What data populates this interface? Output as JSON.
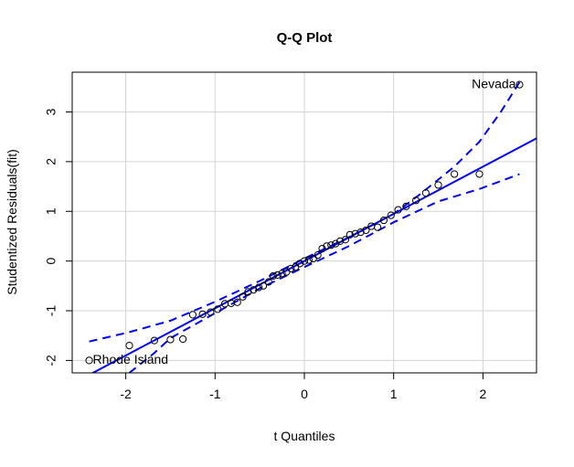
{
  "chart_data": {
    "type": "scatter",
    "title": "Q-Q Plot",
    "xlabel": "t Quantiles",
    "ylabel": "Studentized Residuals(fit)",
    "xlim": [
      -2.6,
      2.6
    ],
    "ylim": [
      -2.25,
      3.8
    ],
    "x_ticks": [
      -2,
      -1,
      0,
      1,
      2
    ],
    "x_tick_labels": [
      "-2",
      "-1",
      "0",
      "1",
      "2"
    ],
    "y_ticks": [
      -2,
      -1,
      0,
      1,
      2,
      3
    ],
    "y_tick_labels": [
      "-2",
      "-1",
      "0",
      "1",
      "2",
      "3"
    ],
    "grid": true,
    "colors": {
      "points": "#000000",
      "line": "#0000ff",
      "grid": "#d3d3d3",
      "axes": "#000000"
    },
    "points": [
      {
        "x": -2.41,
        "y": -2.0
      },
      {
        "x": -1.96,
        "y": -1.7
      },
      {
        "x": -1.68,
        "y": -1.6
      },
      {
        "x": -1.5,
        "y": -1.58
      },
      {
        "x": -1.36,
        "y": -1.57
      },
      {
        "x": -1.25,
        "y": -1.08
      },
      {
        "x": -1.14,
        "y": -1.07
      },
      {
        "x": -1.05,
        "y": -1.03
      },
      {
        "x": -0.97,
        "y": -0.97
      },
      {
        "x": -0.89,
        "y": -0.86
      },
      {
        "x": -0.82,
        "y": -0.85
      },
      {
        "x": -0.75,
        "y": -0.83
      },
      {
        "x": -0.69,
        "y": -0.72
      },
      {
        "x": -0.63,
        "y": -0.62
      },
      {
        "x": -0.57,
        "y": -0.58
      },
      {
        "x": -0.51,
        "y": -0.53
      },
      {
        "x": -0.46,
        "y": -0.5
      },
      {
        "x": -0.4,
        "y": -0.42
      },
      {
        "x": -0.35,
        "y": -0.3
      },
      {
        "x": -0.3,
        "y": -0.28
      },
      {
        "x": -0.25,
        "y": -0.25
      },
      {
        "x": -0.2,
        "y": -0.22
      },
      {
        "x": -0.15,
        "y": -0.15
      },
      {
        "x": -0.1,
        "y": -0.12
      },
      {
        "x": -0.05,
        "y": -0.05
      },
      {
        "x": 0.0,
        "y": 0.0
      },
      {
        "x": 0.05,
        "y": 0.02
      },
      {
        "x": 0.1,
        "y": 0.05
      },
      {
        "x": 0.15,
        "y": 0.12
      },
      {
        "x": 0.2,
        "y": 0.25
      },
      {
        "x": 0.25,
        "y": 0.3
      },
      {
        "x": 0.3,
        "y": 0.32
      },
      {
        "x": 0.35,
        "y": 0.35
      },
      {
        "x": 0.4,
        "y": 0.4
      },
      {
        "x": 0.46,
        "y": 0.43
      },
      {
        "x": 0.51,
        "y": 0.53
      },
      {
        "x": 0.57,
        "y": 0.55
      },
      {
        "x": 0.63,
        "y": 0.58
      },
      {
        "x": 0.69,
        "y": 0.62
      },
      {
        "x": 0.75,
        "y": 0.7
      },
      {
        "x": 0.82,
        "y": 0.68
      },
      {
        "x": 0.89,
        "y": 0.82
      },
      {
        "x": 0.97,
        "y": 0.92
      },
      {
        "x": 1.05,
        "y": 1.03
      },
      {
        "x": 1.14,
        "y": 1.1
      },
      {
        "x": 1.25,
        "y": 1.22
      },
      {
        "x": 1.36,
        "y": 1.37
      },
      {
        "x": 1.5,
        "y": 1.53
      },
      {
        "x": 1.68,
        "y": 1.75
      },
      {
        "x": 1.96,
        "y": 1.75
      },
      {
        "x": 2.41,
        "y": 3.55
      }
    ],
    "reference_line": {
      "intercept": 0.0,
      "slope": 0.95
    },
    "envelope_upper": [
      {
        "x": -2.41,
        "y": -1.62
      },
      {
        "x": -1.96,
        "y": -1.43
      },
      {
        "x": -1.5,
        "y": -1.2
      },
      {
        "x": -1.0,
        "y": -0.82
      },
      {
        "x": -0.5,
        "y": -0.4
      },
      {
        "x": 0.0,
        "y": 0.05
      },
      {
        "x": 0.5,
        "y": 0.48
      },
      {
        "x": 1.0,
        "y": 0.95
      },
      {
        "x": 1.3,
        "y": 1.35
      },
      {
        "x": 1.68,
        "y": 1.9
      },
      {
        "x": 1.96,
        "y": 2.4
      },
      {
        "x": 2.2,
        "y": 3.0
      },
      {
        "x": 2.41,
        "y": 3.6
      }
    ],
    "envelope_lower": [
      {
        "x": -2.41,
        "y": -3.0
      },
      {
        "x": -2.2,
        "y": -2.6
      },
      {
        "x": -1.96,
        "y": -2.25
      },
      {
        "x": -1.68,
        "y": -1.85
      },
      {
        "x": -1.5,
        "y": -1.55
      },
      {
        "x": -1.0,
        "y": -1.05
      },
      {
        "x": -0.5,
        "y": -0.55
      },
      {
        "x": 0.0,
        "y": -0.12
      },
      {
        "x": 0.5,
        "y": 0.3
      },
      {
        "x": 1.0,
        "y": 0.78
      },
      {
        "x": 1.5,
        "y": 1.2
      },
      {
        "x": 1.96,
        "y": 1.45
      },
      {
        "x": 2.41,
        "y": 1.75
      }
    ],
    "annotations": [
      {
        "text": "Nevada",
        "x": 2.41,
        "y": 3.55,
        "anchor": "end"
      },
      {
        "text": "Rhode Island",
        "x": -2.41,
        "y": -2.0,
        "anchor": "start"
      }
    ]
  }
}
